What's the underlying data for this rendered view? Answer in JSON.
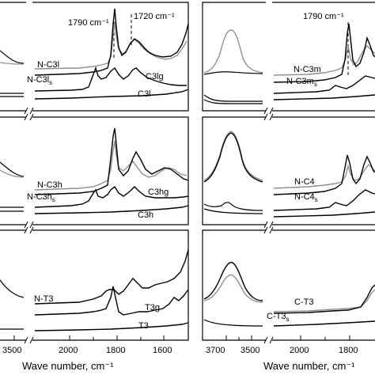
{
  "chart_data": [
    {
      "type": "line",
      "panel": "top-left",
      "x_range_left_segment": [
        3400,
        3750
      ],
      "x_range_right_segment": [
        1520,
        2100
      ],
      "markers": [
        {
          "label": "1790 cm⁻¹",
          "x": 1790
        },
        {
          "label": "1720 cm⁻¹",
          "x": 1720
        }
      ],
      "series": [
        {
          "name": "N-C3l",
          "color": "#909090",
          "x": [
            2100,
            2000,
            1900,
            1850,
            1820,
            1800,
            1790,
            1780,
            1760,
            1740,
            1720,
            1700,
            1680,
            1660,
            1640,
            1620,
            1600,
            1580,
            1560,
            1540,
            1520
          ],
          "y": [
            0.18,
            0.19,
            0.2,
            0.21,
            0.23,
            0.35,
            0.85,
            0.4,
            0.3,
            0.38,
            0.55,
            0.5,
            0.38,
            0.36,
            0.33,
            0.34,
            0.36,
            0.38,
            0.42,
            0.48,
            0.6
          ]
        },
        {
          "name": "N-C3ls",
          "color": "#000000",
          "x": [
            2100,
            2000,
            1900,
            1850,
            1820,
            1800,
            1790,
            1780,
            1760,
            1740,
            1720,
            1700,
            1680,
            1660,
            1640,
            1620,
            1600,
            1580,
            1560,
            1540,
            1520
          ],
          "y": [
            0.12,
            0.13,
            0.14,
            0.15,
            0.17,
            0.3,
            0.9,
            0.45,
            0.32,
            0.42,
            0.6,
            0.55,
            0.45,
            0.42,
            0.4,
            0.38,
            0.4,
            0.42,
            0.46,
            0.55,
            0.75
          ]
        },
        {
          "name": "C3lg",
          "color": "#000000",
          "x": [
            2100,
            2000,
            1900,
            1880,
            1860,
            1840,
            1820,
            1800,
            1780,
            1760,
            1740,
            1720,
            1700,
            1680,
            1660,
            1640,
            1620,
            1600,
            1580,
            1560,
            1540,
            1520
          ],
          "y": [
            0.0,
            0.01,
            0.02,
            0.06,
            0.15,
            0.12,
            0.18,
            0.28,
            0.22,
            0.2,
            0.22,
            0.32,
            0.28,
            0.24,
            0.26,
            0.24,
            0.2,
            0.18,
            0.16,
            0.14,
            0.12,
            0.1
          ]
        },
        {
          "name": "C3l",
          "color": "#000000",
          "x": [
            2100,
            2000,
            1900,
            1800,
            1700,
            1640,
            1600,
            1560,
            1520
          ],
          "y": [
            -0.06,
            -0.05,
            -0.04,
            -0.03,
            -0.02,
            -0.01,
            0.0,
            0.01,
            0.03
          ]
        }
      ]
    },
    {
      "type": "line",
      "panel": "top-right",
      "markers": [
        {
          "label": "1790 cm⁻¹",
          "x": 1790
        }
      ],
      "series": [
        {
          "name": "N-C3m",
          "color": "#909090"
        },
        {
          "name": "N-C3ms",
          "color": "#000000"
        }
      ]
    },
    {
      "type": "line",
      "panel": "middle-left",
      "series": [
        {
          "name": "N-C3h",
          "color": "#909090"
        },
        {
          "name": "N-C3hs",
          "color": "#000000"
        },
        {
          "name": "C3hg",
          "color": "#000000"
        },
        {
          "name": "C3h",
          "color": "#000000"
        }
      ]
    },
    {
      "type": "line",
      "panel": "middle-right",
      "series": [
        {
          "name": "N-C4",
          "color": "#909090"
        },
        {
          "name": "N-C4s",
          "color": "#000000"
        }
      ]
    },
    {
      "type": "line",
      "panel": "bottom-left",
      "series": [
        {
          "name": "N-T3",
          "color": "#000000"
        },
        {
          "name": "T3g",
          "color": "#000000"
        },
        {
          "name": "T3",
          "color": "#000000"
        }
      ]
    },
    {
      "type": "line",
      "panel": "bottom-right",
      "series": [
        {
          "name": "C-T3",
          "color": "#909090"
        },
        {
          "name": "C-T3s",
          "color": "#000000"
        }
      ]
    }
  ],
  "labels": {
    "marker_1790": "1790 cm⁻¹",
    "marker_1720": "1720 cm⁻¹",
    "marker_1790_right": "1790 cm⁻¹",
    "nc3l": "N-C3l",
    "nc3ls_main": "N-C3l",
    "nc3ls_sub": "s",
    "c3lg": "C3lg",
    "c3l": "C3l",
    "nc3m": "N-C3m",
    "nc3ms_main": "N-C3m",
    "nc3ms_sub": "s",
    "nc3h": "N-C3h",
    "nc3hs_main": "N-C3h",
    "nc3hs_sub": "s",
    "c3hg": "C3hg",
    "c3h": "C3h",
    "nc4": "N-C4",
    "nc4s_main": "N-C4",
    "nc4s_sub": "s",
    "nt3": "N-T3",
    "t3g": "T3g",
    "t3": "T3",
    "ct3": "C-T3",
    "ct3s_main": "C-T3",
    "ct3s_sub": "s"
  },
  "ticks_left": [
    "3500",
    "2000",
    "1800",
    "1600"
  ],
  "ticks_right": [
    "3700",
    "3500",
    "2000",
    "1800"
  ],
  "xlabel_left": "Wave number, cm⁻¹",
  "xlabel_right": "Wave number, cm⁻¹"
}
